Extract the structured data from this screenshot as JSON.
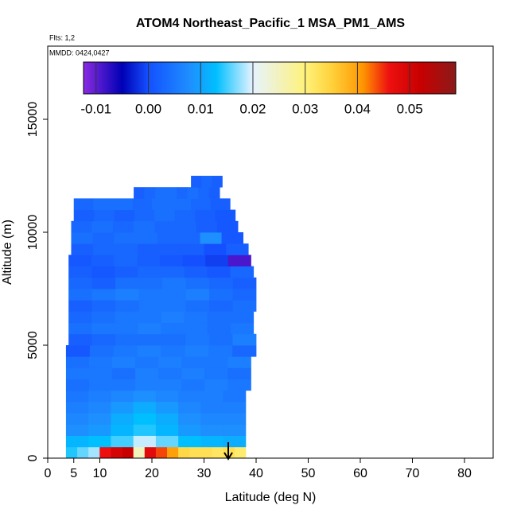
{
  "chart_data": {
    "type": "heatmap",
    "title": "ATOM4 Northeast_Pacific_1 MSA_PM1_AMS",
    "subtitle": "Flts: 1,2",
    "annotation": "MMDD: 0424,0427",
    "x_label": "Latitude (deg N)",
    "y_label": "Altitude (m)",
    "xlim": [
      0,
      85.5
    ],
    "ylim": [
      0,
      18240
    ],
    "xticks": [
      0,
      5,
      10,
      20,
      30,
      40,
      50,
      60,
      70,
      80
    ],
    "yticks": [
      0,
      5000,
      10000,
      15000
    ],
    "colorbar": {
      "lim": [
        -0.0124,
        0.0588
      ],
      "ticks": [
        -0.01,
        {
          "value": 0,
          "label": "0.00"
        },
        0.01,
        0.02,
        0.03,
        0.04,
        0.05
      ],
      "stops": [
        -0.0124,
        -0.005,
        0.0,
        0.008,
        0.013,
        0.02,
        0.03,
        0.035,
        0.041,
        0.046,
        0.052,
        0.0588
      ],
      "colors": [
        "#8a2be2",
        "#0000b4",
        "#1450ff",
        "#1e8fff",
        "#00bfff",
        "#e6f3ff",
        "#fff27a",
        "#ffd23c",
        "#ff9600",
        "#ee1010",
        "#c80000",
        "#8b1a1a"
      ]
    },
    "rows": [
      {
        "alt": [
          0,
          500
        ],
        "lat": [
          3.5,
          38
        ],
        "values": [
          0.014,
          0.016,
          0.018,
          0.046,
          0.05,
          0.052,
          0.025,
          0.048,
          0.044,
          0.04,
          0.034,
          0.033,
          0.033,
          0.032,
          0.033,
          0.031
        ]
      },
      {
        "alt": [
          500,
          1000
        ],
        "lat": [
          3.5,
          38
        ],
        "values": [
          0.012,
          0.013,
          0.015,
          0.019,
          0.016,
          0.013,
          0.012,
          0.011
        ]
      },
      {
        "alt": [
          1000,
          1500
        ],
        "lat": [
          3.5,
          38
        ],
        "values": [
          0.008,
          0.009,
          0.012,
          0.014,
          0.012,
          0.009,
          0.008,
          0.008
        ]
      },
      {
        "alt": [
          1500,
          2000
        ],
        "lat": [
          3.5,
          38
        ],
        "values": [
          0.007,
          0.008,
          0.011,
          0.013,
          0.011,
          0.008,
          0.007,
          0.007
        ]
      },
      {
        "alt": [
          2000,
          2500
        ],
        "lat": [
          3.5,
          38
        ],
        "values": [
          0.006,
          0.007,
          0.009,
          0.011,
          0.009,
          0.007,
          0.006,
          0.006
        ]
      },
      {
        "alt": [
          2500,
          3000
        ],
        "lat": [
          3.5,
          38
        ],
        "values": [
          0.005,
          0.006,
          0.007,
          0.008,
          0.007,
          0.006,
          0.006,
          0.005
        ]
      },
      {
        "alt": [
          3000,
          3500
        ],
        "lat": [
          3.5,
          39
        ],
        "values": [
          0.004,
          0.005,
          0.005,
          0.006,
          0.006,
          0.005,
          0.006,
          0.005
        ]
      },
      {
        "alt": [
          3500,
          4000
        ],
        "lat": [
          3.5,
          39
        ],
        "values": [
          0.005,
          0.005,
          0.004,
          0.006,
          0.005,
          0.006,
          0.005,
          0.004
        ]
      },
      {
        "alt": [
          4000,
          4500
        ],
        "lat": [
          3.5,
          39
        ],
        "values": [
          0.004,
          0.005,
          0.006,
          0.005,
          0.006,
          0.005,
          0.005,
          0.006
        ]
      },
      {
        "alt": [
          4500,
          5000
        ],
        "lat": [
          3.5,
          40
        ],
        "values": [
          0.001,
          0.004,
          0.005,
          0.006,
          0.005,
          0.006,
          0.005,
          0.003
        ]
      },
      {
        "alt": [
          5000,
          5500
        ],
        "lat": [
          4,
          40
        ],
        "values": [
          0.002,
          0.003,
          0.004,
          0.004,
          0.004,
          0.005,
          0.004,
          0.006
        ]
      },
      {
        "alt": [
          5500,
          6000
        ],
        "lat": [
          4,
          39.5
        ],
        "values": [
          0.004,
          0.005,
          0.005,
          0.006,
          0.005,
          0.005,
          0.004,
          0.005
        ]
      },
      {
        "alt": [
          6000,
          6500
        ],
        "lat": [
          4,
          39.5
        ],
        "values": [
          0.003,
          0.004,
          0.005,
          0.005,
          0.006,
          0.005,
          0.004,
          0.004
        ]
      },
      {
        "alt": [
          6500,
          7000
        ],
        "lat": [
          4,
          40
        ],
        "values": [
          0.002,
          0.003,
          0.004,
          0.005,
          0.005,
          0.004,
          0.003,
          0.004
        ]
      },
      {
        "alt": [
          7000,
          7500
        ],
        "lat": [
          4,
          40
        ],
        "values": [
          0.004,
          0.005,
          0.006,
          0.005,
          0.005,
          0.006,
          0.004,
          0.003
        ]
      },
      {
        "alt": [
          7500,
          8000
        ],
        "lat": [
          4,
          40
        ],
        "values": [
          0.003,
          0.002,
          0.004,
          0.004,
          0.005,
          0.004,
          0.003,
          0.002
        ]
      },
      {
        "alt": [
          8000,
          8500
        ],
        "lat": [
          4,
          39.5
        ],
        "values": [
          0.002,
          0.001,
          0.002,
          0.003,
          0.003,
          0.002,
          0.001,
          0.003
        ]
      },
      {
        "alt": [
          8500,
          9000
        ],
        "lat": [
          4,
          39
        ],
        "values": [
          0.001,
          0.002,
          0.003,
          0.002,
          0.001,
          0.0,
          -0.001,
          -0.009
        ]
      },
      {
        "alt": [
          9000,
          9500
        ],
        "lat": [
          4.5,
          38.5
        ],
        "values": [
          0.002,
          0.003,
          0.003,
          0.002,
          0.002,
          0.002,
          0.0,
          0.002
        ]
      },
      {
        "alt": [
          9500,
          10000
        ],
        "lat": [
          4.5,
          37.5
        ],
        "values": [
          0.004,
          0.003,
          0.004,
          0.004,
          0.003,
          0.003,
          0.008,
          0.001
        ]
      },
      {
        "alt": [
          10000,
          10500
        ],
        "lat": [
          4.5,
          36.5
        ],
        "values": [
          0.003,
          0.004,
          0.003,
          0.004,
          0.003,
          0.003,
          0.002,
          0.001
        ]
      },
      {
        "alt": [
          10500,
          11000
        ],
        "lat": [
          5,
          36
        ],
        "values": [
          0.002,
          0.003,
          0.002,
          0.003,
          0.004,
          0.003,
          0.002,
          0.001
        ]
      },
      {
        "alt": [
          11000,
          11500
        ],
        "lat": [
          5,
          35
        ],
        "values": [
          0.003,
          0.004,
          0.004,
          0.003,
          0.004,
          0.004,
          0.003,
          0.002
        ]
      },
      {
        "alt": [
          11500,
          12000
        ],
        "lat": [
          16.5,
          33
        ],
        "values": [
          0.002,
          0.003,
          0.004,
          0.004,
          0.003,
          0.004,
          0.003,
          0.002
        ]
      },
      {
        "alt": [
          12000,
          12500
        ],
        "lat": [
          27.5,
          33.5
        ],
        "values": [
          0.002,
          0.003,
          0.002
        ]
      }
    ]
  }
}
